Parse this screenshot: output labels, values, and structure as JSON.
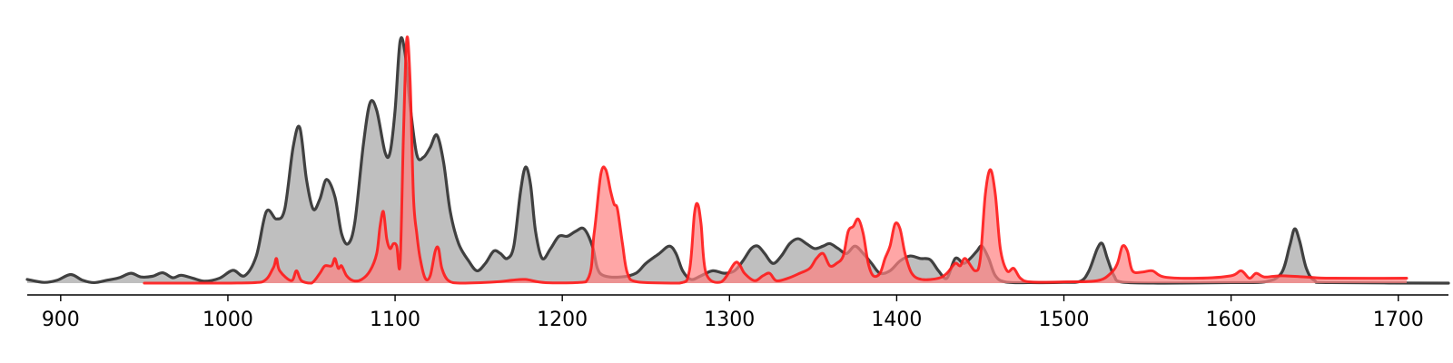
{
  "chart_data": {
    "type": "area",
    "title": "",
    "xlabel": "",
    "ylabel": "",
    "xlim": [
      880,
      1730
    ],
    "ylim": [
      0,
      1.0
    ],
    "grid": false,
    "legend": "none",
    "x_ticks": [
      900,
      1000,
      1100,
      1200,
      1300,
      1400,
      1500,
      1600,
      1700
    ],
    "x_tick_labels": [
      "900",
      "1000",
      "1100",
      "1200",
      "1300",
      "1400",
      "1500",
      "1600",
      "1700"
    ],
    "series": [
      {
        "color": "#404040",
        "fill": "#bfbfbf",
        "baseline": 0.0,
        "points": [
          [
            880,
            0.015
          ],
          [
            890,
            0.003
          ],
          [
            898,
            0.012
          ],
          [
            906,
            0.035
          ],
          [
            913,
            0.012
          ],
          [
            920,
            0.002
          ],
          [
            928,
            0.012
          ],
          [
            935,
            0.022
          ],
          [
            942,
            0.04
          ],
          [
            948,
            0.025
          ],
          [
            955,
            0.028
          ],
          [
            961,
            0.042
          ],
          [
            967,
            0.022
          ],
          [
            972,
            0.032
          ],
          [
            979,
            0.02
          ],
          [
            986,
            0.008
          ],
          [
            995,
            0.02
          ],
          [
            1003,
            0.052
          ],
          [
            1010,
            0.03
          ],
          [
            1017,
            0.11
          ],
          [
            1023,
            0.29
          ],
          [
            1029,
            0.26
          ],
          [
            1034,
            0.3
          ],
          [
            1039,
            0.55
          ],
          [
            1043,
            0.63
          ],
          [
            1047,
            0.42
          ],
          [
            1051,
            0.3
          ],
          [
            1055,
            0.34
          ],
          [
            1059,
            0.42
          ],
          [
            1064,
            0.35
          ],
          [
            1068,
            0.2
          ],
          [
            1072,
            0.16
          ],
          [
            1076,
            0.25
          ],
          [
            1081,
            0.56
          ],
          [
            1085,
            0.73
          ],
          [
            1089,
            0.7
          ],
          [
            1094,
            0.53
          ],
          [
            1097,
            0.53
          ],
          [
            1100,
            0.7
          ],
          [
            1103,
            0.98
          ],
          [
            1106,
            0.93
          ],
          [
            1109,
            0.72
          ],
          [
            1113,
            0.52
          ],
          [
            1117,
            0.51
          ],
          [
            1121,
            0.55
          ],
          [
            1125,
            0.6
          ],
          [
            1129,
            0.49
          ],
          [
            1133,
            0.29
          ],
          [
            1138,
            0.16
          ],
          [
            1144,
            0.09
          ],
          [
            1149,
            0.05
          ],
          [
            1154,
            0.08
          ],
          [
            1159,
            0.13
          ],
          [
            1163,
            0.12
          ],
          [
            1167,
            0.1
          ],
          [
            1171,
            0.15
          ],
          [
            1175,
            0.37
          ],
          [
            1178,
            0.47
          ],
          [
            1181,
            0.4
          ],
          [
            1184,
            0.21
          ],
          [
            1188,
            0.1
          ],
          [
            1193,
            0.14
          ],
          [
            1198,
            0.19
          ],
          [
            1203,
            0.19
          ],
          [
            1208,
            0.21
          ],
          [
            1213,
            0.22
          ],
          [
            1218,
            0.15
          ],
          [
            1221,
            0.06
          ],
          [
            1225,
            0.03
          ],
          [
            1235,
            0.025
          ],
          [
            1244,
            0.04
          ],
          [
            1250,
            0.08
          ],
          [
            1258,
            0.12
          ],
          [
            1264,
            0.15
          ],
          [
            1268,
            0.12
          ],
          [
            1272,
            0.05
          ],
          [
            1277,
            0.015
          ],
          [
            1283,
            0.03
          ],
          [
            1290,
            0.05
          ],
          [
            1297,
            0.04
          ],
          [
            1303,
            0.05
          ],
          [
            1308,
            0.09
          ],
          [
            1313,
            0.14
          ],
          [
            1317,
            0.15
          ],
          [
            1321,
            0.12
          ],
          [
            1326,
            0.08
          ],
          [
            1331,
            0.11
          ],
          [
            1336,
            0.16
          ],
          [
            1341,
            0.18
          ],
          [
            1346,
            0.16
          ],
          [
            1351,
            0.14
          ],
          [
            1356,
            0.15
          ],
          [
            1360,
            0.16
          ],
          [
            1365,
            0.14
          ],
          [
            1370,
            0.12
          ],
          [
            1375,
            0.15
          ],
          [
            1380,
            0.12
          ],
          [
            1385,
            0.08
          ],
          [
            1390,
            0.04
          ],
          [
            1396,
            0.05
          ],
          [
            1402,
            0.09
          ],
          [
            1408,
            0.11
          ],
          [
            1414,
            0.1
          ],
          [
            1420,
            0.095
          ],
          [
            1425,
            0.05
          ],
          [
            1430,
            0.02
          ],
          [
            1435,
            0.1
          ],
          [
            1440,
            0.08
          ],
          [
            1444,
            0.1
          ],
          [
            1448,
            0.13
          ],
          [
            1451,
            0.15
          ],
          [
            1455,
            0.1
          ],
          [
            1459,
            0.03
          ],
          [
            1465,
            0.005
          ],
          [
            1480,
            0.002
          ],
          [
            1500,
            0.003
          ],
          [
            1510,
            0.008
          ],
          [
            1515,
            0.05
          ],
          [
            1520,
            0.14
          ],
          [
            1523,
            0.16
          ],
          [
            1526,
            0.1
          ],
          [
            1530,
            0.03
          ],
          [
            1535,
            0.004
          ],
          [
            1560,
            0.0
          ],
          [
            1600,
            0.002
          ],
          [
            1620,
            0.005
          ],
          [
            1630,
            0.04
          ],
          [
            1635,
            0.15
          ],
          [
            1638,
            0.22
          ],
          [
            1641,
            0.17
          ],
          [
            1645,
            0.06
          ],
          [
            1650,
            0.01
          ],
          [
            1660,
            0.002
          ],
          [
            1730,
            0.0
          ]
        ]
      },
      {
        "color": "#ff1a1a",
        "fill": "#ff8080",
        "baseline": 0.0,
        "points": [
          [
            950,
            0.0
          ],
          [
            1000,
            0.0
          ],
          [
            1020,
            0.004
          ],
          [
            1027,
            0.06
          ],
          [
            1029,
            0.1
          ],
          [
            1031,
            0.05
          ],
          [
            1038,
            0.01
          ],
          [
            1041,
            0.05
          ],
          [
            1044,
            0.01
          ],
          [
            1050,
            0.0
          ],
          [
            1055,
            0.04
          ],
          [
            1058,
            0.07
          ],
          [
            1062,
            0.07
          ],
          [
            1064,
            0.1
          ],
          [
            1066,
            0.06
          ],
          [
            1068,
            0.07
          ],
          [
            1071,
            0.03
          ],
          [
            1075,
            0.01
          ],
          [
            1080,
            0.015
          ],
          [
            1085,
            0.05
          ],
          [
            1089,
            0.12
          ],
          [
            1091,
            0.23
          ],
          [
            1093,
            0.29
          ],
          [
            1095,
            0.18
          ],
          [
            1097,
            0.14
          ],
          [
            1099,
            0.16
          ],
          [
            1101,
            0.15
          ],
          [
            1103,
            0.08
          ],
          [
            1105,
            0.6
          ],
          [
            1107,
            0.99
          ],
          [
            1109,
            0.82
          ],
          [
            1111,
            0.35
          ],
          [
            1113,
            0.2
          ],
          [
            1115,
            0.1
          ],
          [
            1118,
            0.02
          ],
          [
            1121,
            0.03
          ],
          [
            1124,
            0.13
          ],
          [
            1126,
            0.14
          ],
          [
            1128,
            0.06
          ],
          [
            1132,
            0.01
          ],
          [
            1140,
            0.0
          ],
          [
            1160,
            0.005
          ],
          [
            1170,
            0.012
          ],
          [
            1178,
            0.015
          ],
          [
            1190,
            0.002
          ],
          [
            1214,
            0.005
          ],
          [
            1219,
            0.2
          ],
          [
            1223,
            0.44
          ],
          [
            1226,
            0.46
          ],
          [
            1229,
            0.37
          ],
          [
            1231,
            0.32
          ],
          [
            1233,
            0.3
          ],
          [
            1236,
            0.16
          ],
          [
            1239,
            0.04
          ],
          [
            1245,
            0.005
          ],
          [
            1270,
            0.0
          ],
          [
            1276,
            0.05
          ],
          [
            1279,
            0.28
          ],
          [
            1281,
            0.32
          ],
          [
            1283,
            0.24
          ],
          [
            1286,
            0.04
          ],
          [
            1295,
            0.005
          ],
          [
            1303,
            0.08
          ],
          [
            1306,
            0.075
          ],
          [
            1309,
            0.04
          ],
          [
            1315,
            0.01
          ],
          [
            1320,
            0.03
          ],
          [
            1324,
            0.04
          ],
          [
            1328,
            0.01
          ],
          [
            1335,
            0.02
          ],
          [
            1342,
            0.04
          ],
          [
            1348,
            0.06
          ],
          [
            1352,
            0.1
          ],
          [
            1356,
            0.12
          ],
          [
            1360,
            0.07
          ],
          [
            1364,
            0.08
          ],
          [
            1368,
            0.11
          ],
          [
            1371,
            0.21
          ],
          [
            1374,
            0.23
          ],
          [
            1377,
            0.26
          ],
          [
            1380,
            0.2
          ],
          [
            1383,
            0.08
          ],
          [
            1386,
            0.03
          ],
          [
            1390,
            0.04
          ],
          [
            1393,
            0.1
          ],
          [
            1396,
            0.15
          ],
          [
            1399,
            0.24
          ],
          [
            1402,
            0.22
          ],
          [
            1405,
            0.12
          ],
          [
            1409,
            0.04
          ],
          [
            1415,
            0.015
          ],
          [
            1425,
            0.02
          ],
          [
            1430,
            0.04
          ],
          [
            1435,
            0.08
          ],
          [
            1438,
            0.07
          ],
          [
            1441,
            0.1
          ],
          [
            1447,
            0.05
          ],
          [
            1450,
            0.1
          ],
          [
            1453,
            0.36
          ],
          [
            1456,
            0.46
          ],
          [
            1459,
            0.36
          ],
          [
            1462,
            0.14
          ],
          [
            1466,
            0.05
          ],
          [
            1470,
            0.06
          ],
          [
            1474,
            0.02
          ],
          [
            1480,
            0.005
          ],
          [
            1500,
            0.005
          ],
          [
            1520,
            0.01
          ],
          [
            1528,
            0.04
          ],
          [
            1532,
            0.08
          ],
          [
            1535,
            0.15
          ],
          [
            1538,
            0.13
          ],
          [
            1541,
            0.05
          ],
          [
            1547,
            0.045
          ],
          [
            1553,
            0.05
          ],
          [
            1560,
            0.025
          ],
          [
            1580,
            0.02
          ],
          [
            1600,
            0.03
          ],
          [
            1606,
            0.05
          ],
          [
            1611,
            0.02
          ],
          [
            1615,
            0.04
          ],
          [
            1620,
            0.025
          ],
          [
            1630,
            0.03
          ],
          [
            1645,
            0.025
          ],
          [
            1660,
            0.02
          ],
          [
            1705,
            0.02
          ]
        ]
      }
    ]
  }
}
